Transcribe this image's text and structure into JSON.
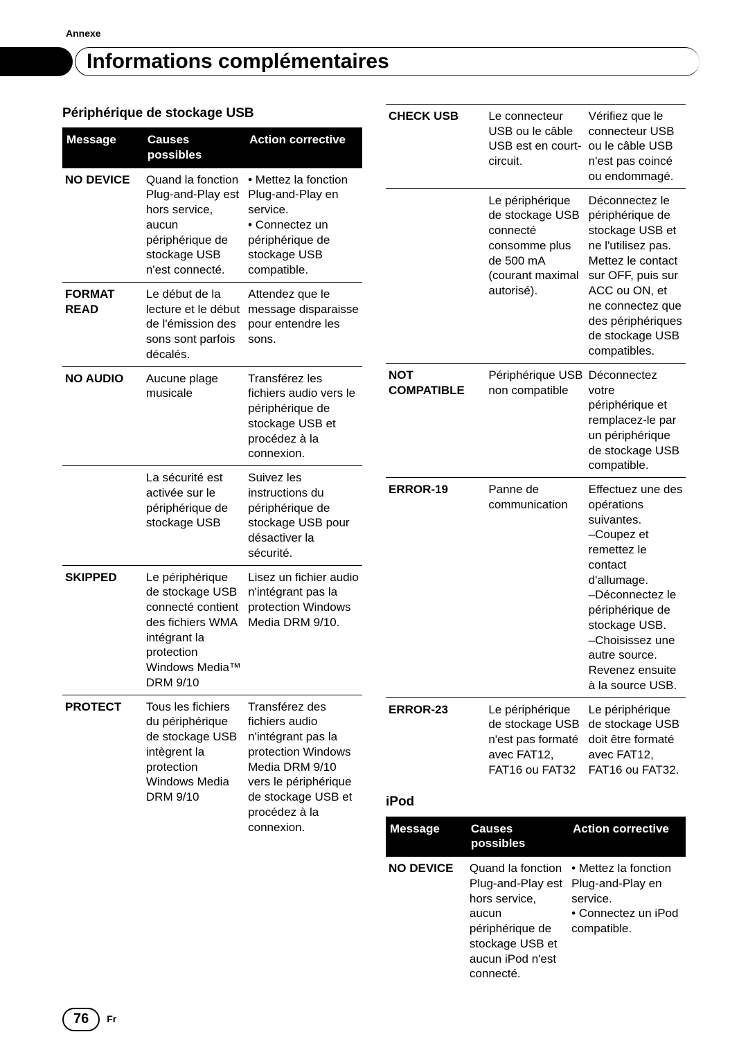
{
  "annexe_label": "Annexe",
  "header_title": "Informations complémentaires",
  "page_number": "76",
  "page_lang": "Fr",
  "usb_section_title": "Périphérique de stockage USB",
  "ipod_section_title": "iPod",
  "columns": {
    "message": "Message",
    "causes": "Causes possibles",
    "action": "Action corrective"
  },
  "usb_rows": [
    {
      "message": "NO DEVICE",
      "cause": "Quand la fonction Plug-and-Play est hors service, aucun périphérique de stockage USB n'est connecté.",
      "action": "• Mettez la fonction Plug-and-Play en service.\n• Connectez un périphérique de stockage USB compatible."
    },
    {
      "message": "FORMAT READ",
      "cause": "Le début de la lecture et le début de l'émission des sons sont parfois décalés.",
      "action": "Attendez que le message disparaisse pour entendre les sons."
    },
    {
      "message": "NO AUDIO",
      "cause": "Aucune plage musicale",
      "action": "Transférez les fichiers audio vers le périphérique de stockage USB et procédez à la connexion."
    },
    {
      "message": "",
      "cause": "La sécurité est activée sur le périphérique de stockage USB",
      "action": "Suivez les instructions du périphérique de stockage USB pour désactiver la sécurité."
    },
    {
      "message": "SKIPPED",
      "cause": "Le périphérique de stockage USB connecté contient des fichiers WMA intégrant la protection Windows Media™ DRM 9/10",
      "action": "Lisez un fichier audio n'intégrant pas la protection Windows Media DRM 9/10."
    },
    {
      "message": "PROTECT",
      "cause": "Tous les fichiers du périphérique de stockage USB intègrent la protection Windows Media DRM 9/10",
      "action": "Transférez des fichiers audio n'intégrant pas la protection Windows Media DRM 9/10 vers le périphérique de stockage USB et procédez à la connexion."
    }
  ],
  "usb_rows_right": [
    {
      "message": "CHECK USB",
      "cause": "Le connecteur USB ou le câble USB est en court-circuit.",
      "action": "Vérifiez que le connecteur USB ou le câble USB n'est pas coincé ou endommagé."
    },
    {
      "message": "",
      "cause": "Le périphérique de stockage USB connecté consomme plus de 500 mA (courant maximal autorisé).",
      "action": "Déconnectez le périphérique de stockage USB et ne l'utilisez pas. Mettez le contact sur OFF, puis sur ACC ou ON, et ne connectez que des périphériques de stockage USB compatibles."
    },
    {
      "message": "NOT COMPATIBLE",
      "cause": "Périphérique USB non compatible",
      "action": "Déconnectez votre périphérique et remplacez-le par un périphérique de stockage USB compatible."
    },
    {
      "message": "ERROR-19",
      "cause": "Panne de communication",
      "action": "Effectuez une des opérations suivantes.\n–Coupez et remettez le contact d'allumage.\n–Déconnectez le périphérique de stockage USB.\n–Choisissez une autre source.\nRevenez ensuite à la source USB."
    },
    {
      "message": "ERROR-23",
      "cause": "Le périphérique de stockage USB n'est pas formaté avec FAT12, FAT16 ou FAT32",
      "action": "Le périphérique de stockage USB doit être formaté avec FAT12, FAT16 ou FAT32."
    }
  ],
  "ipod_rows": [
    {
      "message": "NO DEVICE",
      "cause": "Quand la fonction Plug-and-Play est hors service, aucun périphérique de stockage USB et aucun iPod n'est connecté.",
      "action": "• Mettez la fonction Plug-and-Play en service.\n• Connectez un iPod compatible."
    }
  ]
}
